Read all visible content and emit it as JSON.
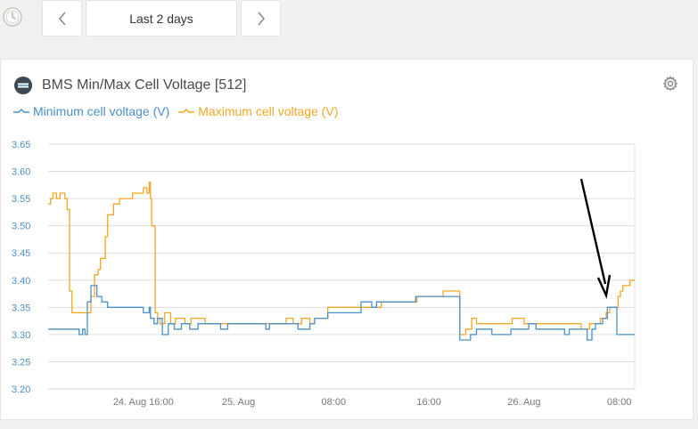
{
  "toolbar": {
    "clock_icon": "clock-icon",
    "prev_icon": "chevron-left-icon",
    "range_label": "Last 2 days",
    "next_icon": "chevron-right-icon"
  },
  "widget": {
    "title": "BMS Min/Max Cell Voltage [512]",
    "device_icon": "battery-device-icon",
    "settings_icon": "gear-icon"
  },
  "colors": {
    "min": "#4a90c8",
    "max": "#f5a623",
    "tick": "#777777",
    "ytick": "#4a90c8",
    "grid": "#dddddd"
  },
  "chart_data": {
    "type": "line",
    "title": "BMS Min/Max Cell Voltage [512]",
    "xlabel": "",
    "ylabel": "",
    "ylim": [
      3.2,
      3.65
    ],
    "xlim": [
      0,
      49.3
    ],
    "grid": "horizontal",
    "legend_position": "top-left",
    "y_ticks": [
      "3.65",
      "3.60",
      "3.55",
      "3.50",
      "3.45",
      "3.40",
      "3.35",
      "3.30",
      "3.25",
      "3.20"
    ],
    "x_ticks": [
      {
        "label": "24. Aug 16:00",
        "x": 8
      },
      {
        "label": "25. Aug",
        "x": 16
      },
      {
        "label": "08:00",
        "x": 24
      },
      {
        "label": "16:00",
        "x": 32
      },
      {
        "label": "26. Aug",
        "x": 40
      },
      {
        "label": "08:00",
        "x": 48
      }
    ],
    "x_unit_note": "hours",
    "series": [
      {
        "name": "Minimum cell voltage (V)",
        "x": [
          0,
          2.0,
          2.6,
          2.9,
          3.1,
          3.3,
          3.6,
          4.1,
          4.5,
          5.0,
          5.5,
          6.5,
          7.6,
          8.0,
          8.5,
          8.6,
          8.9,
          9.2,
          9.6,
          10.1,
          10.6,
          11.2,
          11.9,
          12.6,
          13.2,
          13.9,
          14.5,
          15.1,
          16.5,
          18.0,
          18.3,
          18.6,
          19.0,
          19.5,
          21.0,
          22.0,
          22.4,
          23.5,
          25.4,
          26.3,
          27.2,
          27.6,
          28.1,
          29.4,
          30.9,
          32.5,
          34.5,
          34.6,
          35.0,
          35.5,
          36.0,
          37.0,
          37.3,
          38.9,
          40.0,
          40.4,
          41.0,
          43.0,
          43.4,
          43.8,
          44.5,
          44.9,
          45.3,
          45.7,
          46.0,
          46.6,
          47.0,
          47.5,
          47.8,
          48.3,
          48.9,
          49.3
        ],
        "y": [
          3.31,
          3.31,
          3.3,
          3.31,
          3.3,
          3.36,
          3.39,
          3.37,
          3.36,
          3.35,
          3.35,
          3.35,
          3.35,
          3.34,
          3.35,
          3.33,
          3.32,
          3.33,
          3.3,
          3.32,
          3.31,
          3.32,
          3.31,
          3.32,
          3.32,
          3.32,
          3.31,
          3.32,
          3.32,
          3.32,
          3.31,
          3.32,
          3.32,
          3.32,
          3.31,
          3.32,
          3.33,
          3.34,
          3.34,
          3.36,
          3.35,
          3.36,
          3.36,
          3.36,
          3.37,
          3.37,
          3.37,
          3.29,
          3.29,
          3.3,
          3.31,
          3.31,
          3.3,
          3.31,
          3.31,
          3.32,
          3.31,
          3.31,
          3.3,
          3.31,
          3.31,
          3.31,
          3.29,
          3.31,
          3.32,
          3.33,
          3.35,
          3.35,
          3.3,
          3.3,
          3.3,
          3.3
        ]
      },
      {
        "name": "Maximum cell voltage (V)",
        "x": [
          0,
          0.2,
          0.4,
          0.7,
          1.0,
          1.4,
          1.6,
          1.8,
          2.0,
          2.3,
          2.6,
          3.4,
          3.6,
          3.9,
          4.2,
          4.4,
          4.8,
          5.0,
          5.5,
          6.0,
          6.6,
          7.1,
          7.6,
          8.0,
          8.3,
          8.5,
          8.6,
          8.7,
          9.0,
          9.2,
          9.4,
          9.8,
          10.3,
          10.7,
          11.2,
          11.5,
          12.0,
          12.6,
          13.2,
          14.5,
          17.3,
          19.3,
          20.0,
          20.6,
          21.3,
          22.0,
          22.4,
          23.5,
          25.0,
          27.0,
          28.0,
          29.2,
          31.0,
          32.5,
          33.2,
          34.4,
          34.6,
          35.1,
          35.6,
          36.0,
          37.0,
          38.5,
          39.0,
          40.0,
          41.0,
          42.0,
          43.0,
          44.2,
          44.8,
          45.2,
          45.5,
          45.9,
          46.4,
          46.9,
          47.2,
          47.9,
          48.1,
          48.3,
          48.6,
          48.9,
          49.3
        ],
        "y": [
          3.54,
          3.55,
          3.56,
          3.55,
          3.56,
          3.55,
          3.53,
          3.38,
          3.34,
          3.34,
          3.34,
          3.34,
          3.37,
          3.41,
          3.42,
          3.44,
          3.48,
          3.52,
          3.54,
          3.55,
          3.55,
          3.56,
          3.56,
          3.57,
          3.56,
          3.58,
          3.55,
          3.5,
          3.34,
          3.33,
          3.32,
          3.34,
          3.32,
          3.33,
          3.33,
          3.32,
          3.33,
          3.33,
          3.32,
          3.32,
          3.32,
          3.32,
          3.33,
          3.32,
          3.33,
          3.32,
          3.33,
          3.35,
          3.35,
          3.35,
          3.36,
          3.36,
          3.37,
          3.37,
          3.38,
          3.38,
          3.3,
          3.31,
          3.33,
          3.32,
          3.32,
          3.32,
          3.33,
          3.32,
          3.32,
          3.32,
          3.32,
          3.32,
          3.31,
          3.31,
          3.32,
          3.32,
          3.33,
          3.34,
          3.35,
          3.37,
          3.38,
          3.39,
          3.39,
          3.4,
          3.4
        ]
      }
    ]
  }
}
